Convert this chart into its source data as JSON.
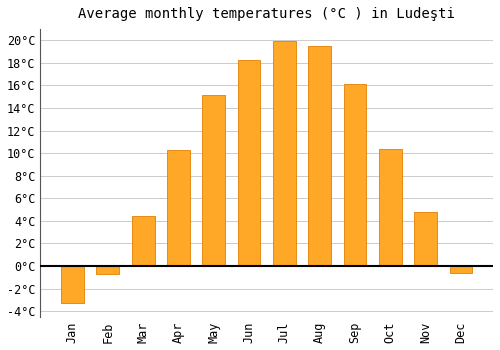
{
  "title": "Average monthly temperatures (°C ) in Ludeşti",
  "months": [
    "Jan",
    "Feb",
    "Mar",
    "Apr",
    "May",
    "Jun",
    "Jul",
    "Aug",
    "Sep",
    "Oct",
    "Nov",
    "Dec"
  ],
  "temperatures": [
    -3.3,
    -0.7,
    4.4,
    10.3,
    15.2,
    18.3,
    19.9,
    19.5,
    16.1,
    10.4,
    4.8,
    -0.6
  ],
  "bar_color_warm": "#FFA726",
  "bar_color_cold": "#FFA726",
  "bar_edge_color": "#E08000",
  "ylim": [
    -4.5,
    21
  ],
  "yticks": [
    -4,
    -2,
    0,
    2,
    4,
    6,
    8,
    10,
    12,
    14,
    16,
    18,
    20
  ],
  "background_color": "#ffffff",
  "grid_color": "#cccccc",
  "zero_line_color": "#000000",
  "left_spine_color": "#555555",
  "title_fontsize": 10,
  "tick_fontsize": 8.5
}
